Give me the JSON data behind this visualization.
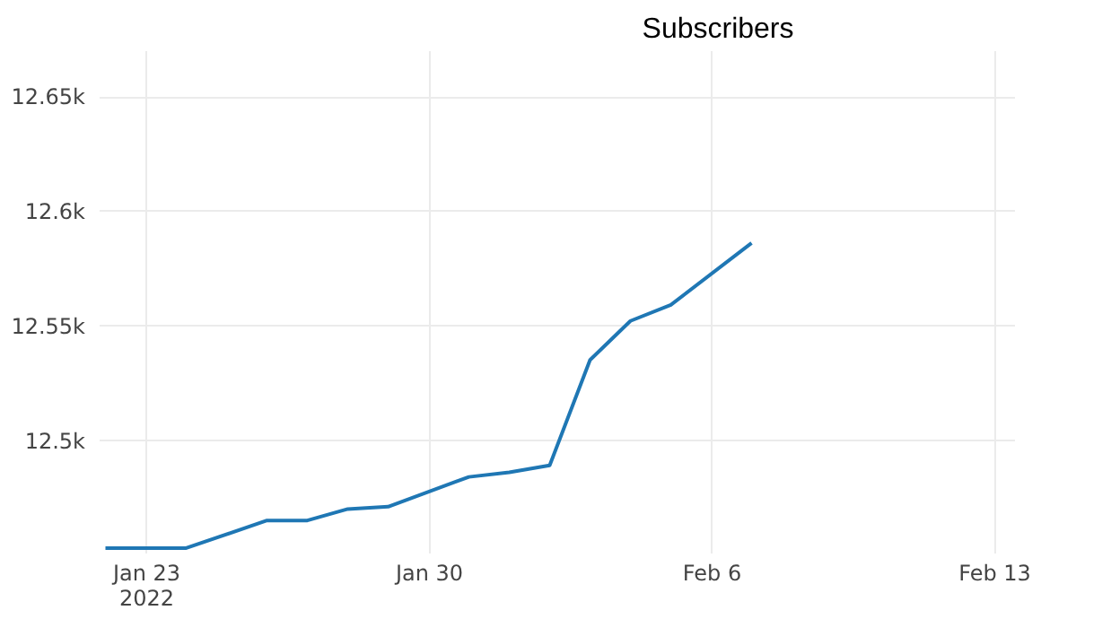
{
  "chart_data": {
    "type": "line",
    "title": "Subscribers",
    "x": [
      "2022-01-22",
      "2022-01-24",
      "2022-01-26",
      "2022-01-27",
      "2022-01-28",
      "2022-01-29",
      "2022-01-31",
      "2022-02-01",
      "2022-02-02",
      "2022-02-03",
      "2022-02-04",
      "2022-02-05",
      "2022-02-07"
    ],
    "series": [
      {
        "color": "#1f77b4",
        "values": [
          12453,
          12453,
          12465,
          12465,
          12470,
          12471,
          12484,
          12486,
          12489,
          12535,
          12552,
          12559,
          12586
        ]
      }
    ],
    "xlim": [
      "2022-01-21T20:00",
      "2022-02-13T12:00"
    ],
    "xticks": [
      {
        "value": "2022-01-23",
        "label": "Jan 23\n2022"
      },
      {
        "value": "2022-01-30",
        "label": "Jan 30"
      },
      {
        "value": "2022-02-06",
        "label": "Feb 6"
      },
      {
        "value": "2022-02-13",
        "label": "Feb 13"
      }
    ],
    "ylim": [
      12451,
      12670
    ],
    "yticks": [
      {
        "value": 12500,
        "label": "12.5k"
      },
      {
        "value": 12550,
        "label": "12.55k"
      },
      {
        "value": 12600,
        "label": "12.6k"
      },
      {
        "value": 12650,
        "label": "12.65k"
      }
    ],
    "grid": true,
    "line_style": "solid",
    "marker": "none"
  }
}
